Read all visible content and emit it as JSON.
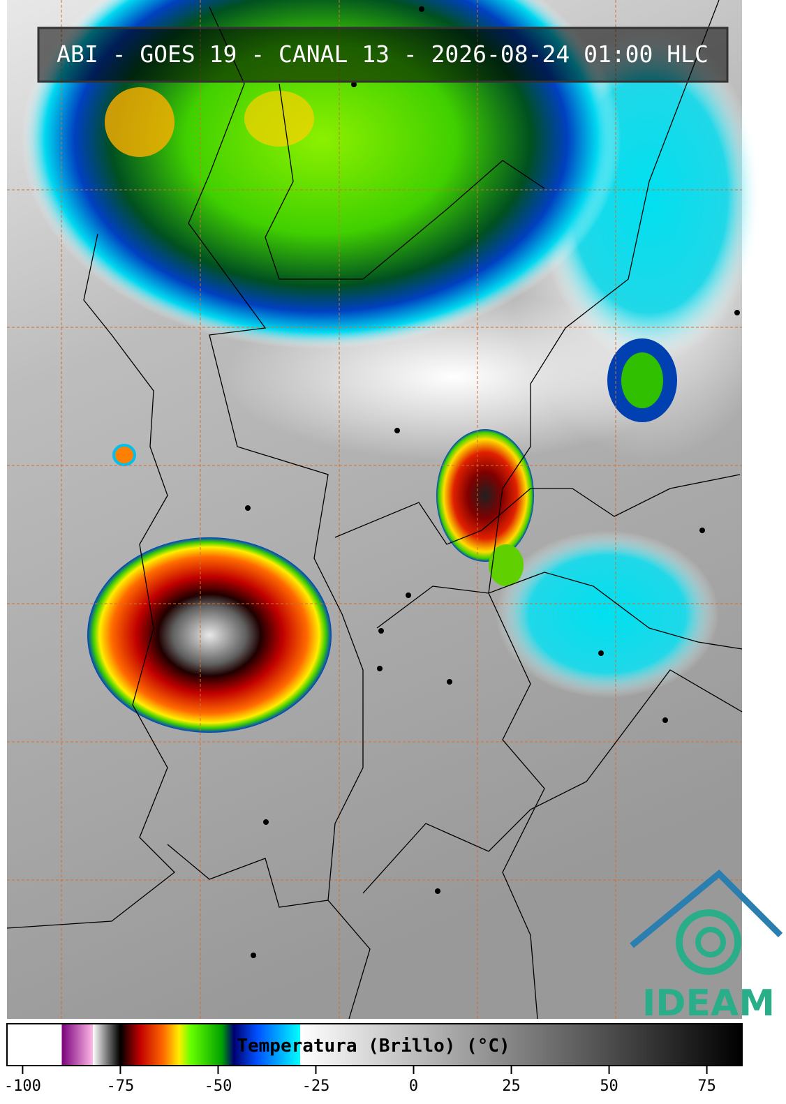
{
  "header": {
    "title": "ABI - GOES 19 - CANAL 13 - 2026-08-24 01:00 HLC"
  },
  "colorbar": {
    "label": "Temperatura (Brillo) (°C)",
    "xlim": [
      -104,
      84
    ],
    "xticks": [
      -100,
      -75,
      -50,
      -25,
      0,
      25,
      50,
      75
    ],
    "stops": [
      {
        "value": -104,
        "color": "#ffffff"
      },
      {
        "value": -90,
        "color": "#ffffff"
      },
      {
        "value": -90,
        "color": "#7a007a"
      },
      {
        "value": -82,
        "color": "#ffb8e8"
      },
      {
        "value": -82,
        "color": "#ffffff"
      },
      {
        "value": -76,
        "color": "#202020"
      },
      {
        "value": -75,
        "color": "#000000"
      },
      {
        "value": -70,
        "color": "#c00000"
      },
      {
        "value": -64,
        "color": "#ff6a00"
      },
      {
        "value": -60,
        "color": "#ffee00"
      },
      {
        "value": -57,
        "color": "#66ff00"
      },
      {
        "value": -49,
        "color": "#00a000"
      },
      {
        "value": -46,
        "color": "#000070"
      },
      {
        "value": -40,
        "color": "#0050ff"
      },
      {
        "value": -29,
        "color": "#00ffff"
      },
      {
        "value": -29,
        "color": "#ffffff"
      },
      {
        "value": 84,
        "color": "#000000"
      }
    ]
  },
  "logo": {
    "text": "IDEAM"
  }
}
